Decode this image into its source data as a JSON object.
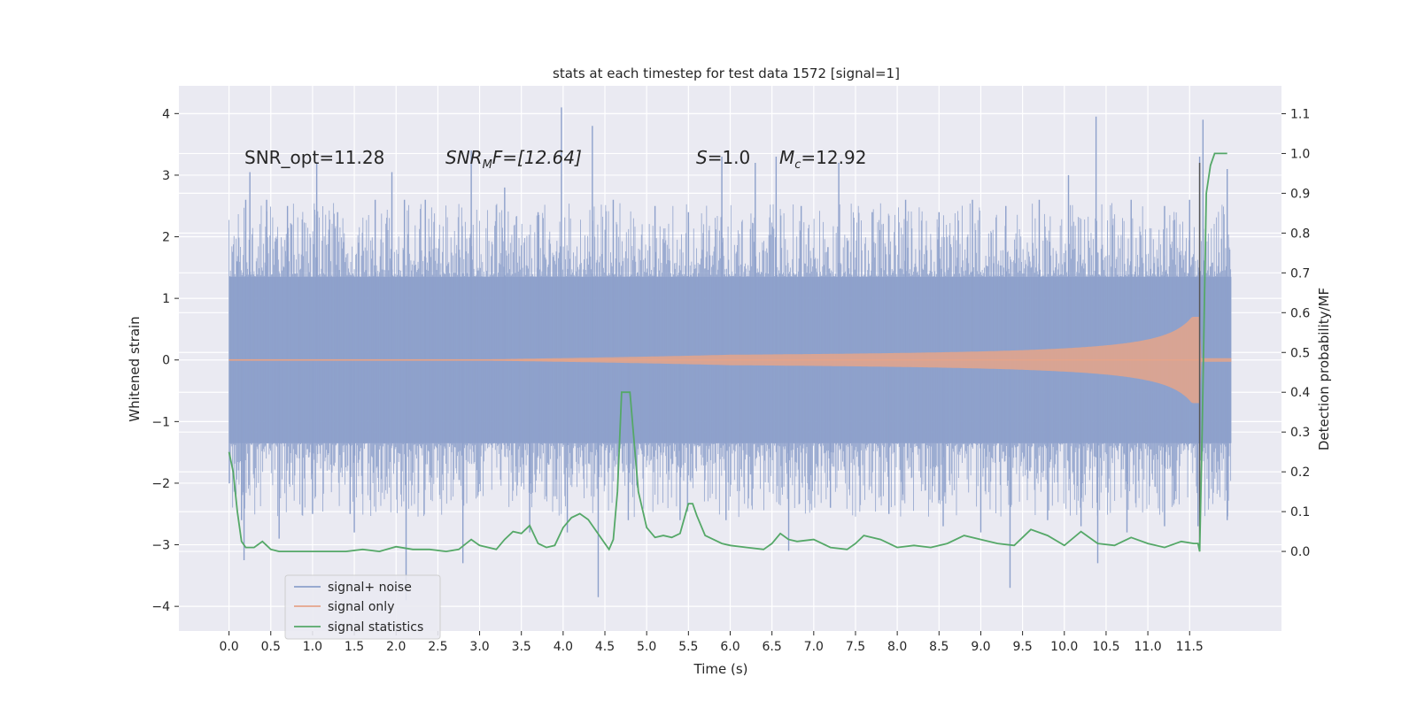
{
  "chart_data": {
    "type": "line",
    "title": "stats at each timestep for test data 1572 [signal=1]",
    "xlabel": "Time (s)",
    "ylabel_left": "Whitened strain",
    "ylabel_right": "Detection probability/MF",
    "xlim": [
      -0.6,
      12.6
    ],
    "ylim_left": [
      -4.4,
      4.45
    ],
    "ylim_right": [
      -0.2,
      1.17
    ],
    "x_ticks": [
      "0.0",
      "0.5",
      "1.0",
      "1.5",
      "2.0",
      "2.5",
      "3.0",
      "3.5",
      "4.0",
      "4.5",
      "5.0",
      "5.5",
      "6.0",
      "6.5",
      "7.0",
      "7.5",
      "8.0",
      "8.5",
      "9.0",
      "9.5",
      "10.0",
      "10.5",
      "11.0",
      "11.5"
    ],
    "y_ticks_left": [
      "4",
      "3",
      "2",
      "1",
      "0",
      "−1",
      "−2",
      "−3",
      "−4"
    ],
    "y_ticks_right": [
      "1.1",
      "1.0",
      "0.9",
      "0.8",
      "0.7",
      "0.6",
      "0.5",
      "0.4",
      "0.3",
      "0.2",
      "0.1",
      "0.0"
    ],
    "grid": true,
    "legend_position": "lower left",
    "annotations": {
      "snr_opt": "SNR_opt=11.28",
      "snr_mf_base": "SNR",
      "snr_mf_sub": "M",
      "snr_mf_rest": "F=[12.64]",
      "s_var": "S",
      "s_val": "=1.0",
      "mc_var": "M",
      "mc_sub": "c",
      "mc_val": "=12.92"
    },
    "series": [
      {
        "name": "signal+ noise",
        "color": "#8da0cb",
        "description_axis": "left",
        "envelope_core": 1.35,
        "spikes": [
          [
            0.1,
            1.6
          ],
          [
            0.2,
            2.6
          ],
          [
            0.25,
            3.05
          ],
          [
            0.45,
            2.6
          ],
          [
            0.7,
            2.5
          ],
          [
            1.05,
            3.2
          ],
          [
            1.3,
            2.4
          ],
          [
            1.75,
            2.6
          ],
          [
            1.95,
            3.05
          ],
          [
            2.1,
            2.6
          ],
          [
            2.35,
            2.6
          ],
          [
            2.9,
            3.4
          ],
          [
            3.3,
            2.8
          ],
          [
            3.7,
            2.4
          ],
          [
            3.98,
            4.1
          ],
          [
            4.35,
            3.8
          ],
          [
            4.6,
            2.6
          ],
          [
            5.1,
            2.5
          ],
          [
            5.5,
            2.4
          ],
          [
            5.9,
            3.3
          ],
          [
            6.3,
            3.2
          ],
          [
            6.55,
            3.3
          ],
          [
            6.85,
            2.5
          ],
          [
            7.3,
            3.2
          ],
          [
            7.7,
            2.4
          ],
          [
            8.1,
            2.6
          ],
          [
            8.5,
            2.4
          ],
          [
            8.9,
            2.6
          ],
          [
            9.3,
            2.5
          ],
          [
            9.7,
            2.6
          ],
          [
            10.05,
            3.0
          ],
          [
            10.38,
            3.95
          ],
          [
            10.8,
            2.6
          ],
          [
            11.2,
            2.5
          ],
          [
            11.5,
            2.6
          ],
          [
            11.62,
            3.3
          ],
          [
            11.66,
            3.9
          ],
          [
            11.95,
            3.1
          ],
          [
            0.15,
            -2.6
          ],
          [
            0.18,
            -3.25
          ],
          [
            0.6,
            -2.9
          ],
          [
            1.0,
            -2.5
          ],
          [
            1.45,
            -2.5
          ],
          [
            1.5,
            -2.8
          ],
          [
            2.12,
            -3.9
          ],
          [
            2.8,
            -3.3
          ],
          [
            3.6,
            -2.8
          ],
          [
            4.05,
            -2.8
          ],
          [
            4.42,
            -3.85
          ],
          [
            4.78,
            -2.6
          ],
          [
            5.4,
            -2.6
          ],
          [
            5.95,
            -2.6
          ],
          [
            6.7,
            -3.1
          ],
          [
            7.2,
            -2.4
          ],
          [
            7.9,
            -2.5
          ],
          [
            8.55,
            -2.7
          ],
          [
            9.0,
            -2.8
          ],
          [
            9.35,
            -3.7
          ],
          [
            9.8,
            -2.6
          ],
          [
            10.2,
            -2.7
          ],
          [
            10.4,
            -3.3
          ],
          [
            10.75,
            -2.8
          ],
          [
            11.2,
            -2.7
          ],
          [
            11.6,
            -2.7
          ],
          [
            11.95,
            -2.6
          ]
        ]
      },
      {
        "name": "signal only",
        "color": "#e5a48a",
        "description_axis": "left",
        "model": "chirp",
        "merger_time": 11.62,
        "peak_amplitude": 0.7
      },
      {
        "name": "signal statistics",
        "color": "#55a868",
        "description_axis": "right",
        "x": [
          0.0,
          0.05,
          0.1,
          0.15,
          0.2,
          0.25,
          0.3,
          0.4,
          0.5,
          0.6,
          0.8,
          1.0,
          1.2,
          1.4,
          1.6,
          1.8,
          2.0,
          2.2,
          2.4,
          2.6,
          2.75,
          2.9,
          3.0,
          3.2,
          3.3,
          3.4,
          3.5,
          3.6,
          3.7,
          3.8,
          3.9,
          4.0,
          4.1,
          4.2,
          4.3,
          4.4,
          4.5,
          4.55,
          4.6,
          4.65,
          4.7,
          4.75,
          4.8,
          4.9,
          5.0,
          5.1,
          5.2,
          5.3,
          5.4,
          5.5,
          5.55,
          5.6,
          5.7,
          5.8,
          5.9,
          6.0,
          6.2,
          6.4,
          6.5,
          6.6,
          6.7,
          6.8,
          7.0,
          7.2,
          7.4,
          7.5,
          7.6,
          7.8,
          8.0,
          8.2,
          8.4,
          8.6,
          8.8,
          9.0,
          9.2,
          9.4,
          9.6,
          9.8,
          10.0,
          10.2,
          10.4,
          10.6,
          10.8,
          11.0,
          11.2,
          11.4,
          11.55,
          11.6,
          11.62,
          11.65,
          11.7,
          11.75,
          11.8,
          11.85,
          11.9,
          11.95
        ],
        "y": [
          0.25,
          0.2,
          0.1,
          0.025,
          0.01,
          0.01,
          0.01,
          0.025,
          0.005,
          0.0,
          0.0,
          0.0,
          0.0,
          0.0,
          0.005,
          0.0,
          0.012,
          0.005,
          0.005,
          0.0,
          0.005,
          0.03,
          0.015,
          0.005,
          0.03,
          0.05,
          0.045,
          0.065,
          0.02,
          0.01,
          0.015,
          0.06,
          0.085,
          0.095,
          0.08,
          0.05,
          0.02,
          0.005,
          0.03,
          0.15,
          0.4,
          0.4,
          0.4,
          0.15,
          0.06,
          0.035,
          0.04,
          0.035,
          0.045,
          0.12,
          0.12,
          0.09,
          0.04,
          0.03,
          0.02,
          0.015,
          0.01,
          0.005,
          0.02,
          0.045,
          0.03,
          0.025,
          0.03,
          0.01,
          0.005,
          0.02,
          0.04,
          0.03,
          0.01,
          0.015,
          0.01,
          0.02,
          0.04,
          0.03,
          0.02,
          0.015,
          0.055,
          0.04,
          0.015,
          0.05,
          0.02,
          0.015,
          0.035,
          0.02,
          0.01,
          0.025,
          0.02,
          0.02,
          0.0,
          0.3,
          0.9,
          0.97,
          1.0,
          1.0,
          1.0,
          1.0
        ]
      }
    ]
  }
}
